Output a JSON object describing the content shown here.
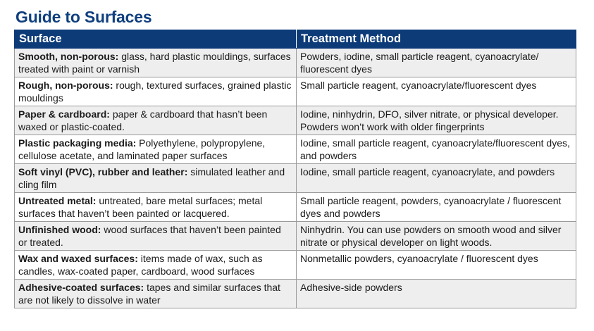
{
  "title": "Guide to Surfaces",
  "headers": {
    "surface": "Surface",
    "method": "Treatment Method"
  },
  "rows": [
    {
      "name": "Smooth, non-porous:",
      "desc": " glass, hard plastic mouldings, surfaces treated with paint or varnish",
      "method": "Powders, iodine, small particle reagent, cyanoacrylate/ fluorescent dyes"
    },
    {
      "name": "Rough, non-porous:",
      "desc": " rough, textured surfaces, grained plastic mouldings",
      "method": "Small particle reagent, cyanoacrylate/fluorescent dyes"
    },
    {
      "name": "Paper & cardboard:",
      "desc": " paper & cardboard that hasn’t been waxed or plastic-coated.",
      "method": "Iodine, ninhydrin, DFO, silver nitrate, or physical developer. Powders won’t work with older fingerprints"
    },
    {
      "name": "Plastic packaging media:",
      "desc": " Polyethylene, polypropylene, cellulose acetate, and laminated paper surfaces",
      "method": "Iodine, small particle reagent, cyanoacrylate/fluorescent dyes, and powders"
    },
    {
      "name": "Soft vinyl (PVC), rubber and leather:",
      "desc": " simulated leather and cling film",
      "method": "Iodine, small particle reagent, cyanoacrylate, and powders"
    },
    {
      "name": "Untreated metal:",
      "desc": " untreated, bare metal surfaces; metal surfaces that haven’t been painted or lacquered.",
      "method": "Small particle reagent, powders, cyanoacrylate / fluorescent dyes and powders"
    },
    {
      "name": "Unfinished wood:",
      "desc": " wood surfaces that haven’t been painted or treated.",
      "method": "Ninhydrin. You can use powders on smooth wood and silver nitrate or physical developer on light woods."
    },
    {
      "name": "Wax and waxed surfaces:",
      "desc": " items made of wax, such as candles, wax-coated paper, cardboard, wood surfaces",
      "method": "Nonmetallic powders, cyanoacrylate / fluorescent dyes"
    },
    {
      "name": "Adhesive-coated surfaces:",
      "desc": " tapes and similar surfaces that are not likely to dissolve in water",
      "method": "Adhesive-side powders"
    }
  ]
}
